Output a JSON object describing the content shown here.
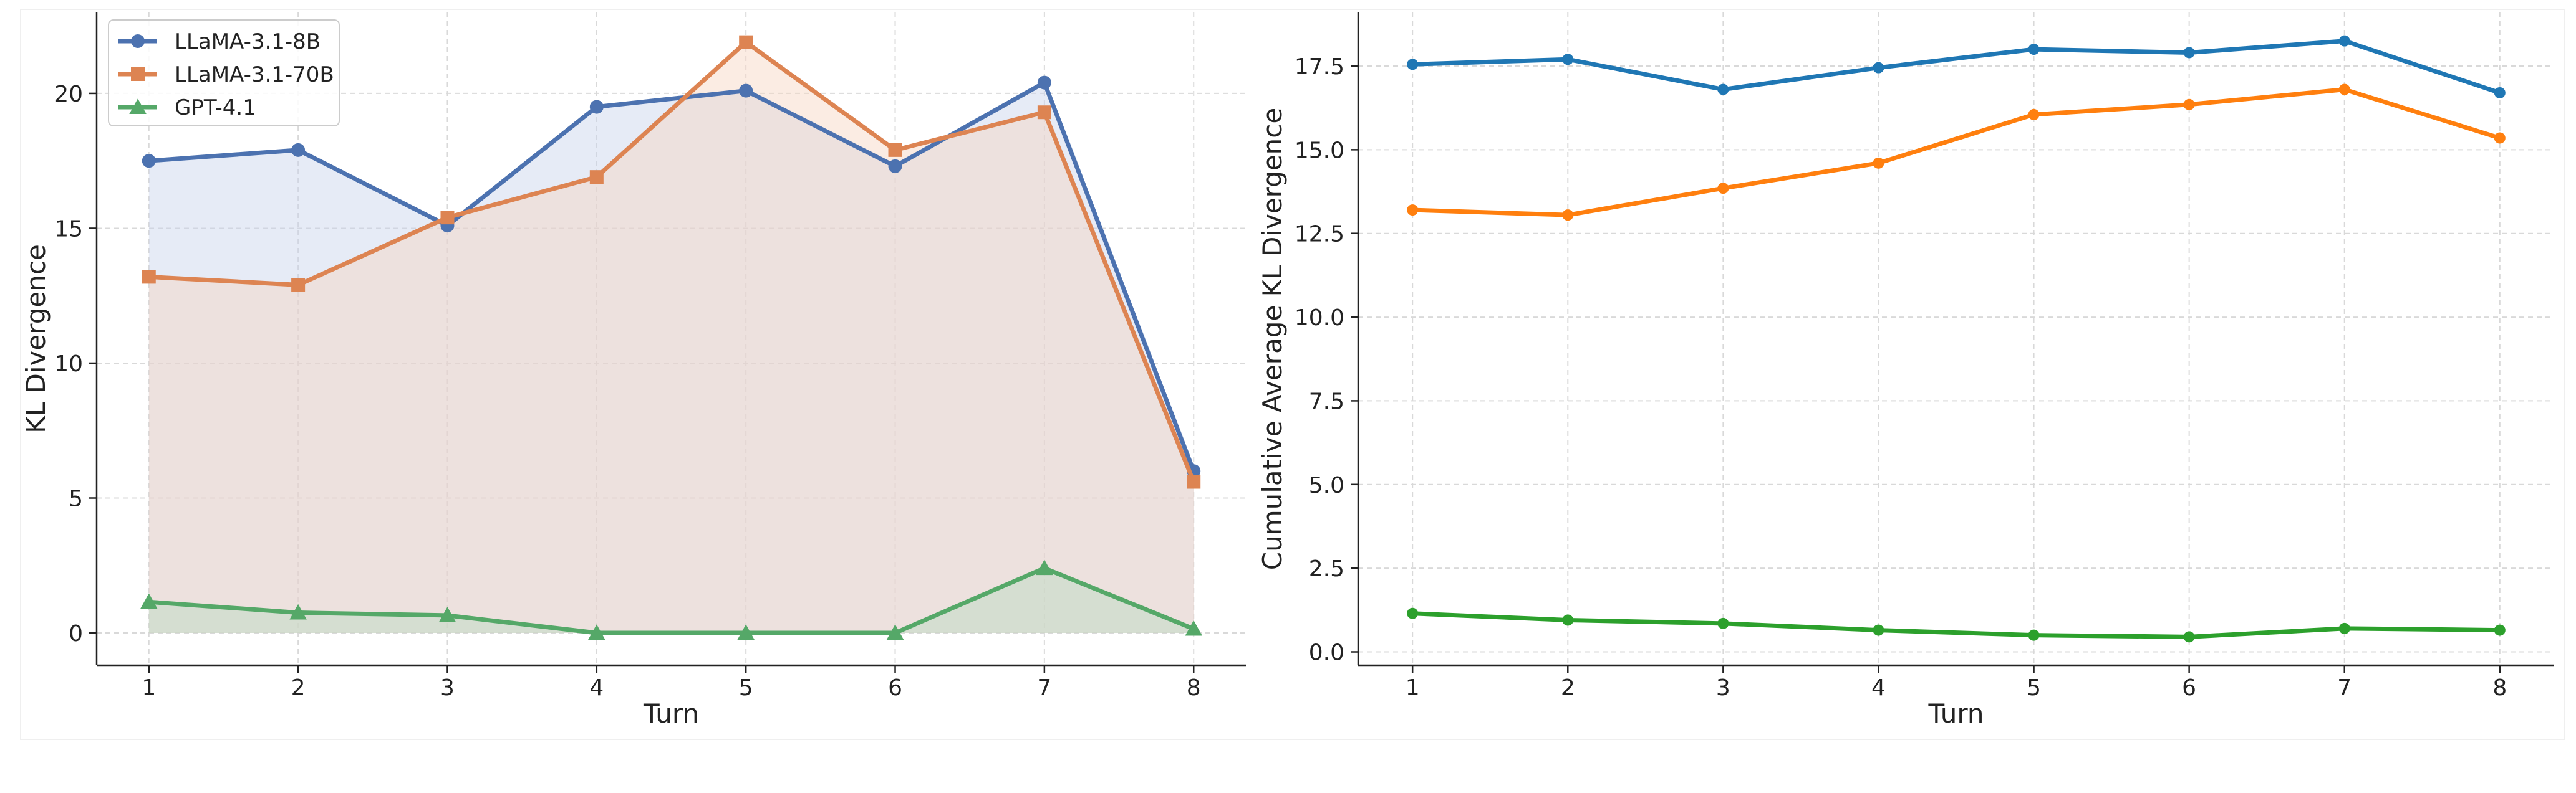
{
  "chart_data": [
    {
      "type": "line",
      "fill": "area",
      "xlabel": "Turn",
      "ylabel": "KL Divergence",
      "x": [
        1,
        2,
        3,
        4,
        5,
        6,
        7,
        8
      ],
      "xticks": [
        1,
        2,
        3,
        4,
        5,
        6,
        7,
        8
      ],
      "yticks": [
        0,
        5,
        10,
        15,
        20
      ],
      "xlim": [
        0.65,
        8.35
      ],
      "ylim": [
        -1.2,
        23.0
      ],
      "grid": true,
      "legend_position": "top-left",
      "series": [
        {
          "name": "LLaMA-3.1-8B",
          "marker": "circle",
          "color": "#4c72b0",
          "fill_color": "#c7d3ea",
          "values": [
            17.5,
            17.9,
            15.1,
            19.5,
            20.1,
            17.3,
            20.4,
            6.0
          ]
        },
        {
          "name": "LLaMA-3.1-70B",
          "marker": "square",
          "color": "#dd8452",
          "fill_color": "#f6d5c2",
          "values": [
            13.2,
            12.9,
            15.4,
            16.9,
            21.9,
            17.9,
            19.3,
            5.6
          ]
        },
        {
          "name": "GPT-4.1",
          "marker": "triangle",
          "color": "#55a868",
          "fill_color": "#b9dcc1",
          "values": [
            1.15,
            0.75,
            0.65,
            0.0,
            0.0,
            0.0,
            2.4,
            0.15
          ]
        }
      ]
    },
    {
      "type": "line",
      "xlabel": "Turn",
      "ylabel": "Cumulative Average KL Divergence",
      "x": [
        1,
        2,
        3,
        4,
        5,
        6,
        7,
        8
      ],
      "xticks": [
        1,
        2,
        3,
        4,
        5,
        6,
        7,
        8
      ],
      "yticks": [
        "0.0",
        "2.5",
        "5.0",
        "7.5",
        "10.0",
        "12.5",
        "15.0",
        "17.5"
      ],
      "xlim": [
        0.65,
        8.35
      ],
      "ylim": [
        -0.4,
        19.1
      ],
      "grid": true,
      "series": [
        {
          "marker": "circle",
          "color": "#1f77b4",
          "values": [
            17.55,
            17.7,
            16.8,
            17.45,
            18.0,
            17.9,
            18.25,
            16.7
          ]
        },
        {
          "marker": "circle",
          "color": "#ff7f0e",
          "values": [
            13.2,
            13.05,
            13.85,
            14.6,
            16.05,
            16.35,
            16.8,
            15.35
          ]
        },
        {
          "marker": "circle",
          "color": "#2ca02c",
          "values": [
            1.15,
            0.95,
            0.85,
            0.65,
            0.5,
            0.45,
            0.7,
            0.65
          ]
        }
      ]
    }
  ]
}
